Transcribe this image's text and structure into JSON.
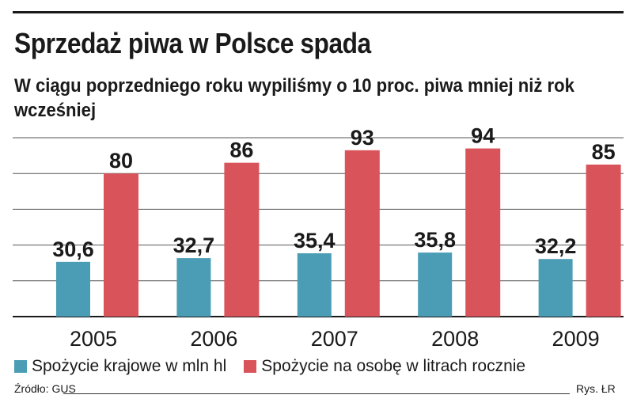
{
  "header": {
    "title": "Sprzedaż piwa w Polsce spada",
    "subtitle": "W ciągu poprzedniego roku wypiliśmy o 10 proc. piwa mniej niż rok wcześniej"
  },
  "chart_data": {
    "type": "bar",
    "title": "Sprzedaż piwa w Polsce spada",
    "categories": [
      "2005",
      "2006",
      "2007",
      "2008",
      "2009"
    ],
    "series": [
      {
        "name": "Spożycie krajowe w mln hl",
        "color": "#4a9db5",
        "values": [
          30.6,
          32.7,
          35.4,
          35.8,
          32.2
        ],
        "labels": [
          "30,6",
          "32,7",
          "35,4",
          "35,8",
          "32,2"
        ]
      },
      {
        "name": "Spożycie na osobę w litrach rocznie",
        "color": "#d9545a",
        "values": [
          80,
          86,
          93,
          94,
          85
        ],
        "labels": [
          "80",
          "86",
          "93",
          "94",
          "85"
        ]
      }
    ],
    "ylim": [
      0,
      100
    ],
    "grid": true,
    "legend": "bottom-left",
    "xlabel": "",
    "ylabel": ""
  },
  "footer": {
    "source": "Źródło: GUS",
    "credit": "Rys. ŁR"
  }
}
